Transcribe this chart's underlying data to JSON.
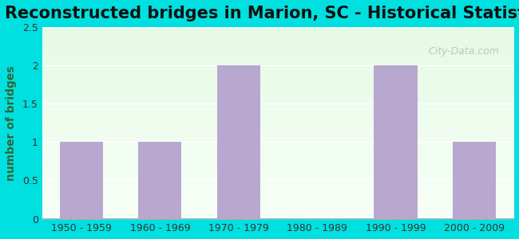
{
  "title": "Reconstructed bridges in Marion, SC - Historical Statistics",
  "categories": [
    "1950 - 1959",
    "1960 - 1969",
    "1970 - 1979",
    "1980 - 1989",
    "1990 - 1999",
    "2000 - 2009"
  ],
  "values": [
    1,
    1,
    2,
    0,
    2,
    1
  ],
  "bar_color": "#b8a8d0",
  "ylabel": "number of bridges",
  "ylim": [
    0,
    2.5
  ],
  "yticks": [
    0,
    0.5,
    1,
    1.5,
    2,
    2.5
  ],
  "background_outer": "#00e0e0",
  "title_fontsize": 15,
  "ylabel_fontsize": 10,
  "tick_fontsize": 9,
  "watermark": "City-Data.com"
}
